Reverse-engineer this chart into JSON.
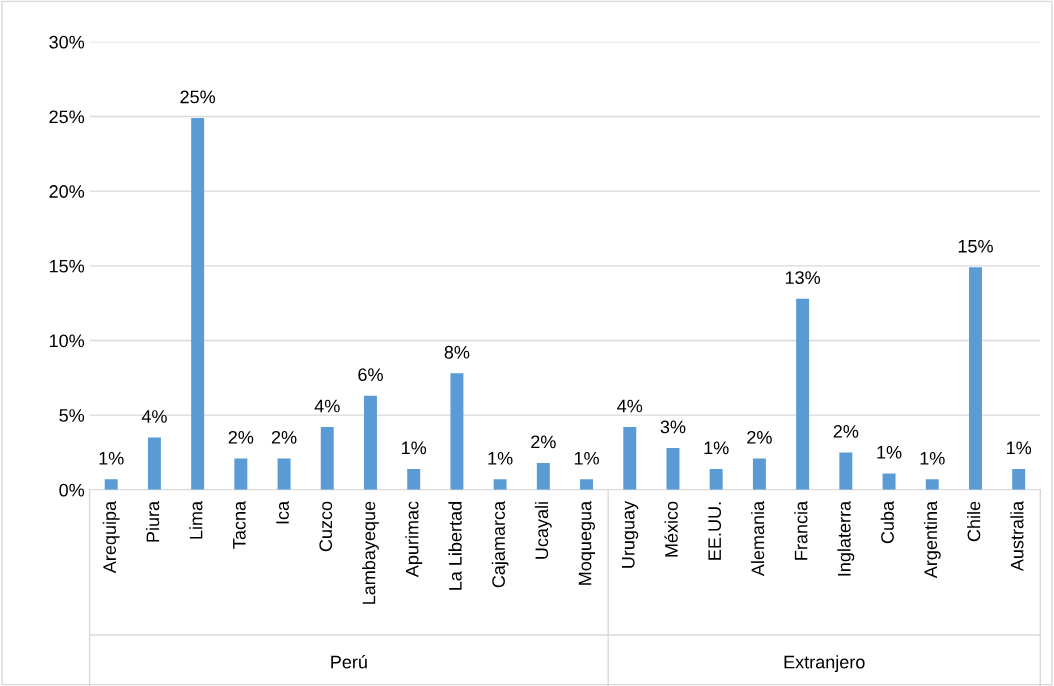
{
  "chart_data": {
    "type": "bar",
    "categories": [
      "Arequipa",
      "Piura",
      "Lima",
      "Tacna",
      "Ica",
      "Cuzco",
      "Lambayeque",
      "Apurimac",
      "La Libertad",
      "Cajamarca",
      "Ucayali",
      "Moquegua",
      "Uruguay",
      "México",
      "EE.UU.",
      "Alemania",
      "Francia",
      "Inglaterra",
      "Cuba",
      "Argentina",
      "Chile",
      "Australia"
    ],
    "values": [
      0.7,
      3.5,
      24.9,
      2.1,
      2.1,
      4.2,
      6.3,
      1.4,
      7.8,
      0.7,
      1.8,
      0.7,
      4.2,
      2.8,
      1.4,
      2.1,
      12.8,
      2.5,
      1.1,
      0.7,
      14.9,
      1.4
    ],
    "value_labels": [
      "1%",
      "4%",
      "25%",
      "2%",
      "2%",
      "4%",
      "6%",
      "1%",
      "8%",
      "1%",
      "2%",
      "1%",
      "4%",
      "3%",
      "1%",
      "2%",
      "13%",
      "2%",
      "1%",
      "1%",
      "15%",
      "1%"
    ],
    "color": "#5b9bd5",
    "ylim": [
      0,
      30
    ],
    "yticks": [
      {
        "value": 0,
        "label": "0%"
      },
      {
        "value": 5,
        "label": "5%"
      },
      {
        "value": 10,
        "label": "10%"
      },
      {
        "value": 15,
        "label": "15%"
      },
      {
        "value": 20,
        "label": "20%"
      },
      {
        "value": 25,
        "label": "25%"
      },
      {
        "value": 30,
        "label": "30%"
      }
    ],
    "grid": "y",
    "legend": false,
    "annotations": [
      "Perú",
      "Extranjero"
    ]
  }
}
